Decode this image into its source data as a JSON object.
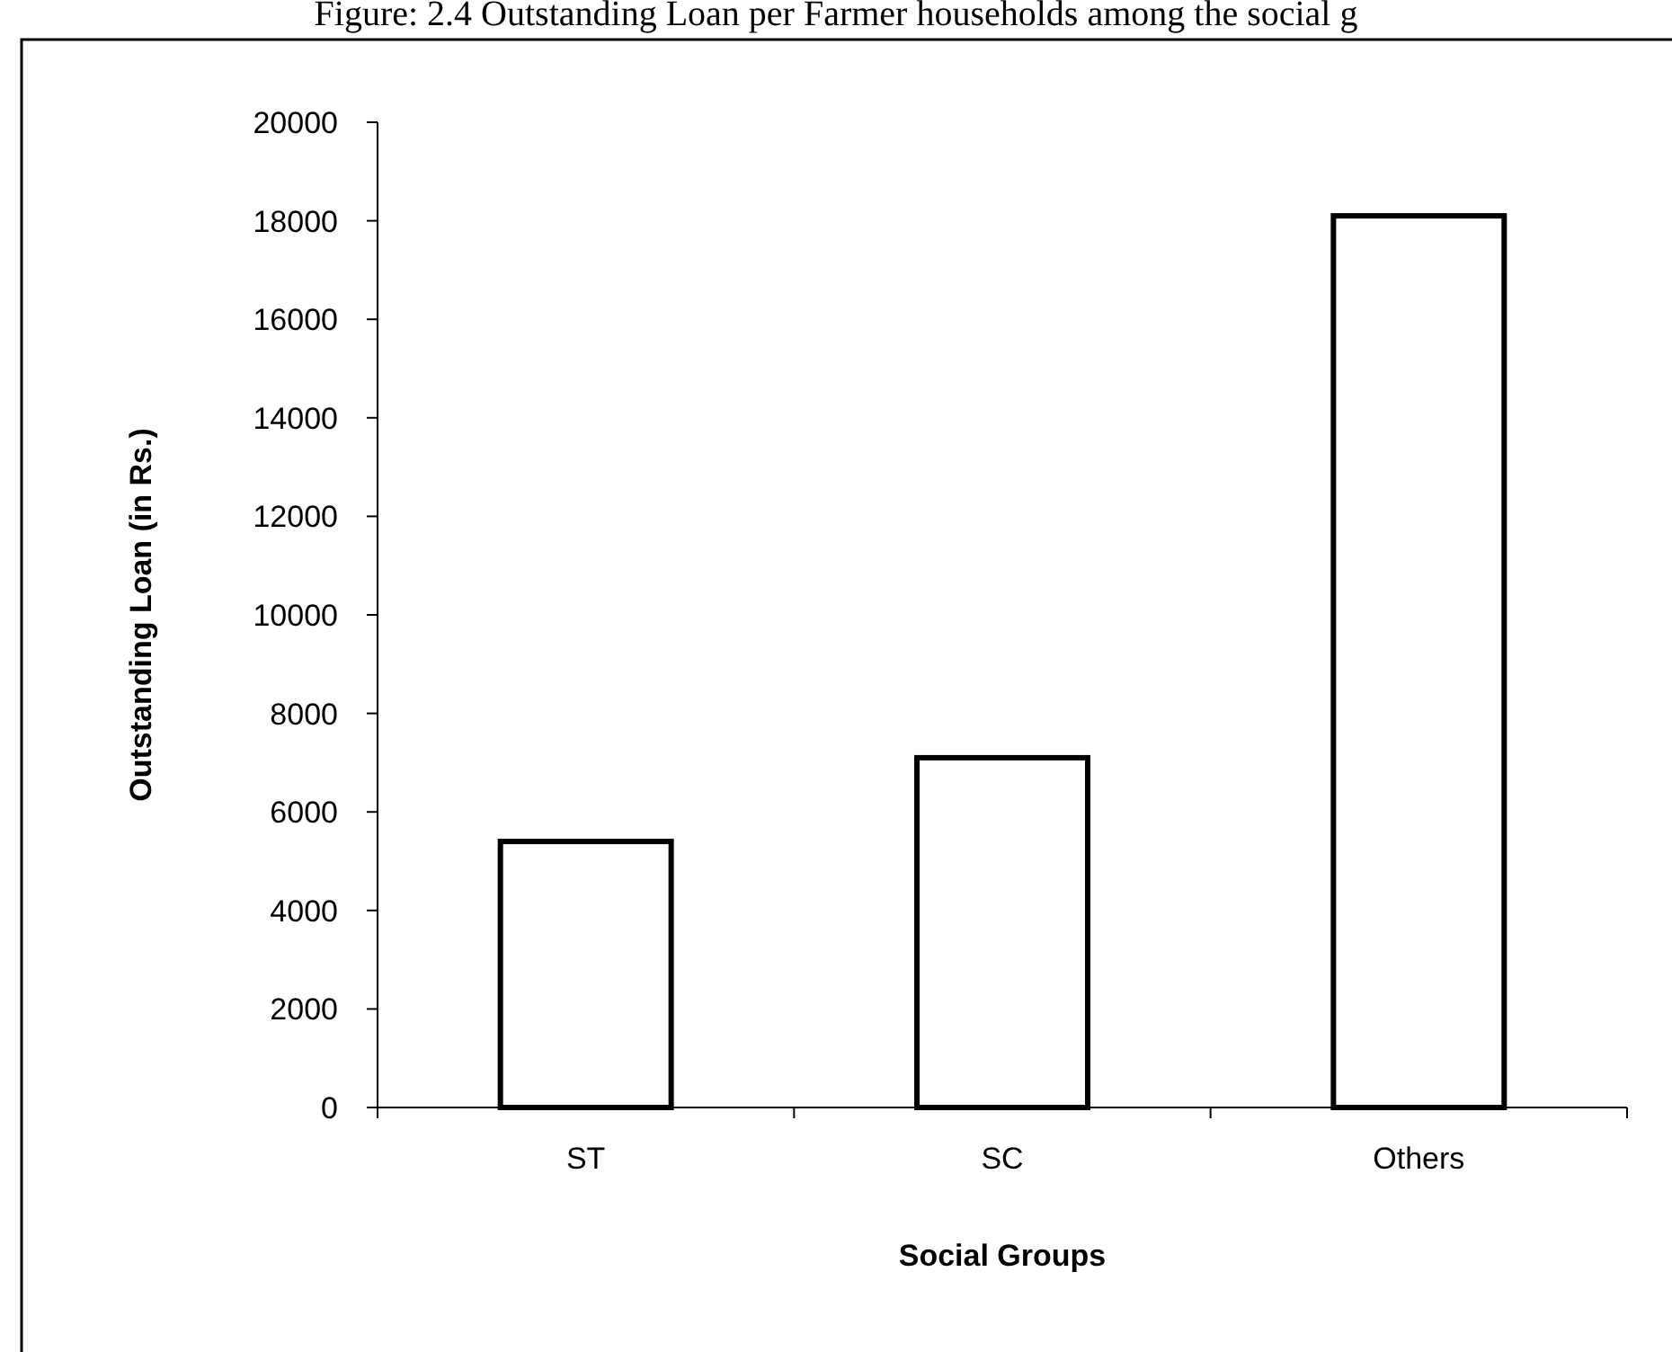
{
  "chart_data": {
    "type": "bar",
    "title": "Figure: 2.4 Outstanding Loan per Farmer households among the social g",
    "xlabel": "Social Groups",
    "ylabel": "Outstanding Loan (in Rs.)",
    "categories": [
      "ST",
      "SC",
      "Others"
    ],
    "values": [
      5400,
      7100,
      18100
    ],
    "color": "#ffffff",
    "ylim": [
      0,
      20000
    ],
    "yticks": [
      0,
      2000,
      4000,
      6000,
      8000,
      10000,
      12000,
      14000,
      16000,
      18000,
      20000
    ],
    "grid": false
  }
}
